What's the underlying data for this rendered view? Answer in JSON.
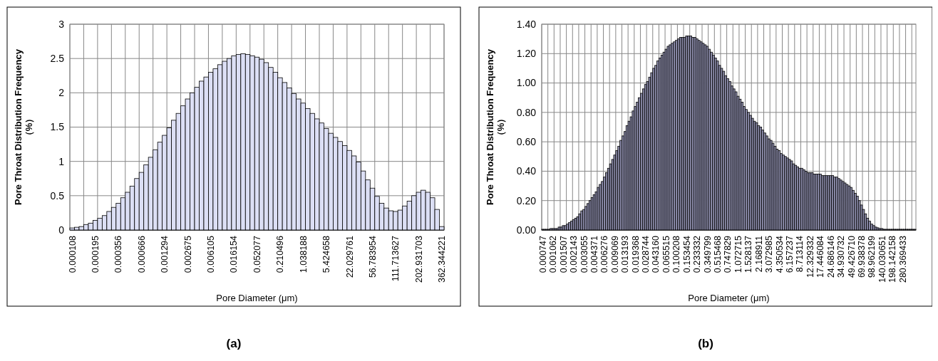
{
  "chart_data": [
    {
      "type": "bar",
      "title": "(a)",
      "xlabel": "Pore Diameter (μm)",
      "ylabel": "Pore Throat Distribution Frequency\n（%）",
      "categories": [
        "0.000108",
        null,
        null,
        null,
        null,
        "0.000195",
        null,
        null,
        null,
        null,
        "0.000356",
        null,
        null,
        null,
        null,
        "0.000666",
        null,
        null,
        null,
        null,
        "0.001294",
        null,
        null,
        null,
        null,
        "0.002675",
        null,
        null,
        null,
        null,
        "0.006105",
        null,
        null,
        null,
        null,
        "0.016154",
        null,
        null,
        null,
        null,
        "0.052077",
        null,
        null,
        null,
        null,
        "0.210496",
        null,
        null,
        null,
        null,
        "1.038188",
        null,
        null,
        null,
        null,
        "5.424658",
        null,
        null,
        null,
        null,
        "22.029761",
        null,
        null,
        null,
        null,
        "56.783954",
        null,
        null,
        null,
        null,
        "111.713627",
        null,
        null,
        null,
        null,
        "202.931703",
        null,
        null,
        null,
        null,
        "362.344221"
      ],
      "values": [
        0.03,
        0.04,
        0.05,
        0.08,
        0.1,
        0.14,
        0.17,
        0.21,
        0.27,
        0.33,
        0.39,
        0.47,
        0.55,
        0.64,
        0.75,
        0.84,
        0.95,
        1.06,
        1.17,
        1.28,
        1.38,
        1.49,
        1.6,
        1.7,
        1.81,
        1.91,
        2.0,
        2.08,
        2.17,
        2.23,
        2.3,
        2.35,
        2.41,
        2.46,
        2.5,
        2.54,
        2.56,
        2.57,
        2.56,
        2.54,
        2.52,
        2.49,
        2.44,
        2.37,
        2.3,
        2.22,
        2.15,
        2.07,
        1.99,
        1.91,
        1.85,
        1.77,
        1.7,
        1.62,
        1.56,
        1.48,
        1.41,
        1.35,
        1.29,
        1.23,
        1.16,
        1.08,
        0.99,
        0.86,
        0.73,
        0.61,
        0.49,
        0.39,
        0.32,
        0.28,
        0.27,
        0.29,
        0.35,
        0.42,
        0.5,
        0.55,
        0.58,
        0.55,
        0.47,
        0.3,
        0.05
      ],
      "color": "#dcdff5",
      "ylim": [
        0,
        3
      ],
      "yticks": [
        0,
        0.5,
        1,
        1.5,
        2,
        2.5,
        3
      ],
      "grid": true
    },
    {
      "type": "bar",
      "title": "(b)",
      "xlabel": "Pore Diameter (μm)",
      "ylabel": "Pore Throat Distribution Frequency\n（%）",
      "categories": [
        "0.000747",
        null,
        null,
        null,
        null,
        "0.001062",
        null,
        null,
        null,
        null,
        "0.001507",
        null,
        null,
        null,
        null,
        "0.002143",
        null,
        null,
        null,
        null,
        "0.003055",
        null,
        null,
        null,
        null,
        "0.004371",
        null,
        null,
        null,
        null,
        "0.006276",
        null,
        null,
        null,
        null,
        "0.009069",
        null,
        null,
        null,
        null,
        "0.013193",
        null,
        null,
        null,
        null,
        "0.019368",
        null,
        null,
        null,
        null,
        "0.028744",
        null,
        null,
        null,
        null,
        "0.043160",
        null,
        null,
        null,
        null,
        "0.065515",
        null,
        null,
        null,
        null,
        "0.100208",
        null,
        null,
        null,
        null,
        "0.153454",
        null,
        null,
        null,
        null,
        "0.233332",
        null,
        null,
        null,
        null,
        "0.349799",
        null,
        null,
        null,
        null,
        "0.515468",
        null,
        null,
        null,
        null,
        "0.747829",
        null,
        null,
        null,
        null,
        "1.072715",
        null,
        null,
        null,
        null,
        "1.528137",
        null,
        null,
        null,
        null,
        "2.168911",
        null,
        null,
        null,
        null,
        "3.072985",
        null,
        null,
        null,
        null,
        "4.350534",
        null,
        null,
        null,
        null,
        "6.157237",
        null,
        null,
        null,
        null,
        "8.713114",
        null,
        null,
        null,
        null,
        "12.329332",
        null,
        null,
        null,
        null,
        "17.446084",
        null,
        null,
        null,
        null,
        "24.686146",
        null,
        null,
        null,
        null,
        "34.930732",
        null,
        null,
        null,
        null,
        "49.426710",
        null,
        null,
        null,
        null,
        "69.938378",
        null,
        null,
        null,
        null,
        "98.962199",
        null,
        null,
        null,
        null,
        "140.030651",
        null,
        null,
        null,
        null,
        "198.142158",
        null,
        null,
        null,
        null,
        "280.369433",
        null,
        null,
        null,
        null,
        null,
        null
      ],
      "values": [
        0.005,
        0.005,
        0.005,
        0.005,
        0.01,
        0.01,
        0.01,
        0.01,
        0.02,
        0.02,
        0.03,
        0.03,
        0.04,
        0.05,
        0.06,
        0.07,
        0.08,
        0.09,
        0.11,
        0.13,
        0.14,
        0.16,
        0.18,
        0.2,
        0.22,
        0.24,
        0.26,
        0.29,
        0.31,
        0.33,
        0.36,
        0.39,
        0.42,
        0.45,
        0.48,
        0.51,
        0.54,
        0.57,
        0.61,
        0.64,
        0.67,
        0.71,
        0.74,
        0.77,
        0.81,
        0.84,
        0.87,
        0.9,
        0.93,
        0.96,
        0.99,
        1.01,
        1.04,
        1.07,
        1.1,
        1.12,
        1.15,
        1.17,
        1.19,
        1.21,
        1.23,
        1.25,
        1.26,
        1.27,
        1.28,
        1.29,
        1.3,
        1.31,
        1.31,
        1.31,
        1.32,
        1.32,
        1.32,
        1.31,
        1.31,
        1.3,
        1.29,
        1.28,
        1.27,
        1.26,
        1.25,
        1.23,
        1.21,
        1.19,
        1.17,
        1.15,
        1.12,
        1.1,
        1.08,
        1.05,
        1.03,
        1.01,
        0.98,
        0.96,
        0.94,
        0.91,
        0.89,
        0.87,
        0.84,
        0.82,
        0.8,
        0.78,
        0.76,
        0.74,
        0.73,
        0.71,
        0.7,
        0.68,
        0.66,
        0.64,
        0.62,
        0.61,
        0.59,
        0.57,
        0.55,
        0.54,
        0.52,
        0.51,
        0.5,
        0.49,
        0.48,
        0.47,
        0.45,
        0.44,
        0.43,
        0.42,
        0.42,
        0.41,
        0.4,
        0.39,
        0.39,
        0.39,
        0.38,
        0.38,
        0.38,
        0.38,
        0.37,
        0.37,
        0.37,
        0.37,
        0.37,
        0.37,
        0.36,
        0.36,
        0.35,
        0.34,
        0.33,
        0.32,
        0.31,
        0.3,
        0.29,
        0.27,
        0.25,
        0.23,
        0.2,
        0.17,
        0.14,
        0.11,
        0.08,
        0.06,
        0.04,
        0.03,
        0.02,
        0.015,
        0.01,
        0.01,
        0.005,
        0.005,
        0.005,
        0.005,
        0.005,
        0.005,
        0.005,
        0.005,
        0.005,
        0.005,
        0.005,
        0.005,
        0.005,
        0.005,
        0.005,
        0.005
      ],
      "color": "#8a8aa8",
      "ylim": [
        0,
        1.4
      ],
      "yticks": [
        {
          "value": 0,
          "label": "0.00"
        },
        {
          "value": 0.2,
          "label": "0.20"
        },
        {
          "value": 0.4,
          "label": "0.40"
        },
        {
          "value": 0.6,
          "label": "0.60"
        },
        {
          "value": 0.8,
          "label": "0.80"
        },
        {
          "value": 1.0,
          "label": "1.00"
        },
        {
          "value": 1.2,
          "label": "1.20"
        },
        {
          "value": 1.4,
          "label": "1.40"
        }
      ],
      "grid": true
    }
  ]
}
